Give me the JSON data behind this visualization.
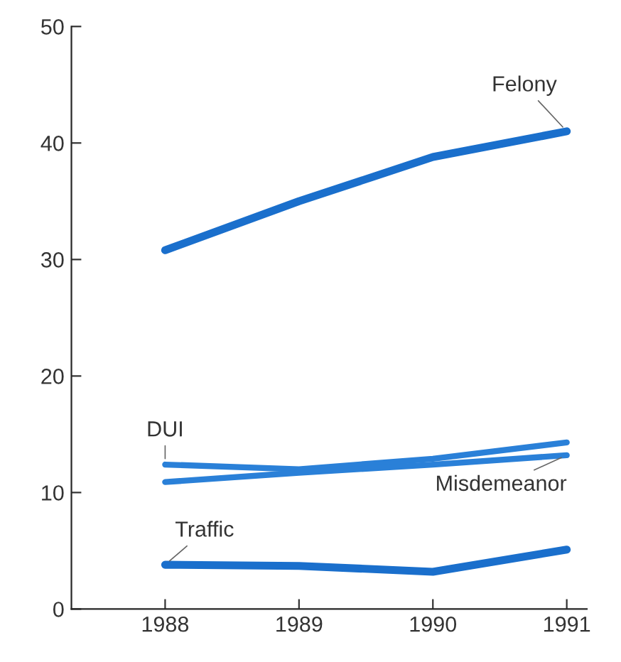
{
  "chart_data": {
    "type": "line",
    "x": [
      1988,
      1989,
      1990,
      1991
    ],
    "series": [
      {
        "name": "Felony",
        "color": "#1a6fcc",
        "values": [
          30.8,
          35,
          38.8,
          41
        ]
      },
      {
        "name": "DUI",
        "color": "#2a80d8",
        "values": [
          12.4,
          12.0,
          12.9,
          14.3
        ]
      },
      {
        "name": "Misdemeanor",
        "color": "#2a80d8",
        "values": [
          10.9,
          11.7,
          12.4,
          13.2
        ]
      },
      {
        "name": "Traffic",
        "color": "#1a6fcc",
        "values": [
          3.8,
          3.7,
          3.2,
          5.1
        ]
      }
    ],
    "xlim": [
      1987.3,
      1991.15
    ],
    "xticks": [
      1988,
      1989,
      1990,
      1991
    ],
    "ylim": [
      0,
      50
    ],
    "yticks": [
      0,
      10,
      20,
      30,
      40,
      50
    ],
    "grid": false,
    "legend": false,
    "marker": "none",
    "line_style": "solid"
  }
}
